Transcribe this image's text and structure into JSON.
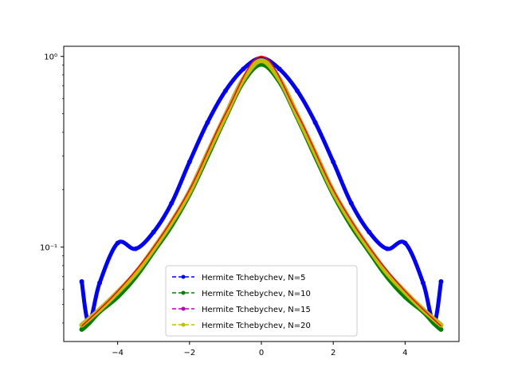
{
  "chart_data": {
    "type": "line",
    "title": "",
    "xlabel": "",
    "ylabel": "",
    "xlim": [
      -5.5,
      5.5
    ],
    "ylim": [
      0.032,
      1.13
    ],
    "yscale": "log",
    "grid": false,
    "legend_placement": "lower-center",
    "x_ticks": [
      -4,
      -2,
      0,
      2,
      4
    ],
    "x_tick_labels": [
      "−4",
      "−2",
      "0",
      "2",
      "4"
    ],
    "y_ticks": [
      0.1,
      1
    ],
    "y_tick_labels": [
      "10⁻¹",
      "10⁰"
    ],
    "reference_curve": {
      "name": "",
      "color": "#ff0000",
      "x": [
        -5,
        -4,
        -3,
        -2,
        -1,
        0,
        1,
        2,
        3,
        4,
        5
      ],
      "y": [
        0.0385,
        0.0588,
        0.1,
        0.2,
        0.5,
        1.0,
        0.5,
        0.2,
        0.1,
        0.0588,
        0.0385
      ]
    },
    "series": [
      {
        "name": "Hermite Tchebychev, N=5",
        "color": "#0000ff",
        "x": [
          -5,
          -4.8,
          -4.5,
          -4,
          -3.5,
          -3,
          -2.5,
          -2,
          -1.5,
          -1,
          -0.5,
          0,
          0.5,
          1,
          1.5,
          2,
          2.5,
          3,
          3.5,
          4,
          4.5,
          4.8,
          5
        ],
        "y": [
          0.066,
          0.04,
          0.065,
          0.105,
          0.098,
          0.12,
          0.17,
          0.28,
          0.45,
          0.66,
          0.86,
          0.98,
          0.86,
          0.66,
          0.45,
          0.28,
          0.17,
          0.12,
          0.098,
          0.105,
          0.065,
          0.04,
          0.066
        ]
      },
      {
        "name": "Hermite Tchebychev, N=10",
        "color": "#008000",
        "x": [
          -5,
          -4.8,
          -4.5,
          -4,
          -3.5,
          -3,
          -2.5,
          -2,
          -1.5,
          -1,
          -0.5,
          0,
          0.5,
          1,
          1.5,
          2,
          2.5,
          3,
          3.5,
          4,
          4.5,
          4.8,
          5
        ],
        "y": [
          0.037,
          0.04,
          0.046,
          0.055,
          0.07,
          0.095,
          0.13,
          0.19,
          0.3,
          0.48,
          0.74,
          0.91,
          0.74,
          0.48,
          0.3,
          0.19,
          0.13,
          0.095,
          0.07,
          0.055,
          0.046,
          0.04,
          0.037
        ]
      },
      {
        "name": "Hermite Tchebychev, N=15",
        "color": "#bf00bf",
        "x": [
          -5,
          -4.5,
          -4,
          -3.5,
          -3,
          -2.5,
          -2,
          -1.5,
          -1,
          -0.5,
          0,
          0.5,
          1,
          1.5,
          2,
          2.5,
          3,
          3.5,
          4,
          4.5,
          5
        ],
        "y": [
          0.039,
          0.047,
          0.058,
          0.073,
          0.098,
          0.135,
          0.195,
          0.31,
          0.49,
          0.76,
          0.95,
          0.76,
          0.49,
          0.31,
          0.195,
          0.135,
          0.098,
          0.073,
          0.058,
          0.047,
          0.039
        ]
      },
      {
        "name": "Hermite Tchebychev, N=20",
        "color": "#bfbf00",
        "x": [
          -5,
          -4.5,
          -4,
          -3.5,
          -3,
          -2.5,
          -2,
          -1.5,
          -1,
          -0.5,
          0,
          0.5,
          1,
          1.5,
          2,
          2.5,
          3,
          3.5,
          4,
          4.5,
          5
        ],
        "y": [
          0.039,
          0.047,
          0.058,
          0.073,
          0.098,
          0.135,
          0.195,
          0.31,
          0.49,
          0.76,
          0.95,
          0.76,
          0.49,
          0.31,
          0.195,
          0.135,
          0.098,
          0.073,
          0.058,
          0.047,
          0.039
        ]
      }
    ]
  }
}
